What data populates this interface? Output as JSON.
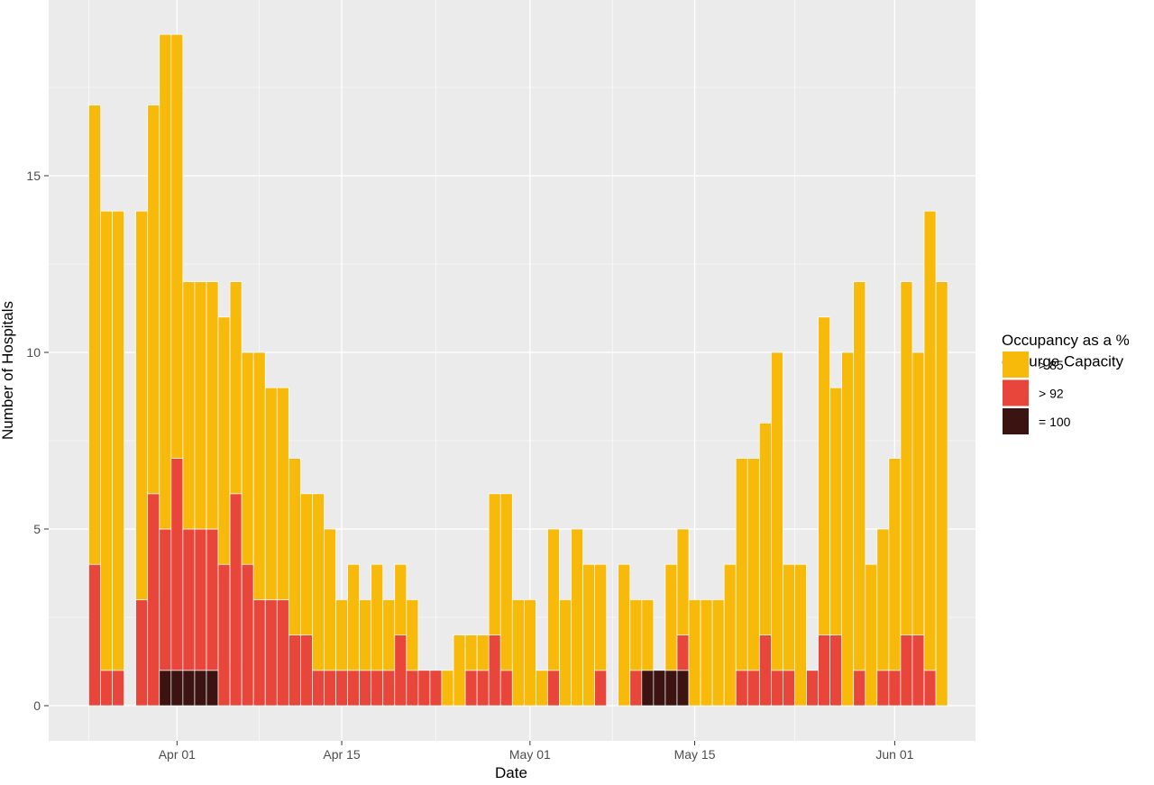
{
  "chart_data": {
    "type": "bar",
    "stacked": true,
    "xlabel": "Date",
    "ylabel": "Number of Hospitals",
    "ylim": [
      0,
      19
    ],
    "yticks": [
      0,
      5,
      10,
      15
    ],
    "xticks": [
      "Apr 01",
      "Apr 15",
      "May 01",
      "May 15",
      "Jun 01"
    ],
    "xtick_dates": [
      "2020-04-01",
      "2020-04-15",
      "2020-05-01",
      "2020-05-15",
      "2020-06-01"
    ],
    "x": [
      "2020-03-25",
      "2020-03-26",
      "2020-03-27",
      "2020-03-28",
      "2020-03-29",
      "2020-03-30",
      "2020-03-31",
      "2020-04-01",
      "2020-04-02",
      "2020-04-03",
      "2020-04-04",
      "2020-04-05",
      "2020-04-06",
      "2020-04-07",
      "2020-04-08",
      "2020-04-09",
      "2020-04-10",
      "2020-04-11",
      "2020-04-12",
      "2020-04-13",
      "2020-04-14",
      "2020-04-15",
      "2020-04-16",
      "2020-04-17",
      "2020-04-18",
      "2020-04-19",
      "2020-04-20",
      "2020-04-21",
      "2020-04-22",
      "2020-04-23",
      "2020-04-24",
      "2020-04-25",
      "2020-04-26",
      "2020-04-27",
      "2020-04-28",
      "2020-04-29",
      "2020-04-30",
      "2020-05-01",
      "2020-05-02",
      "2020-05-03",
      "2020-05-04",
      "2020-05-05",
      "2020-05-06",
      "2020-05-07",
      "2020-05-08",
      "2020-05-09",
      "2020-05-10",
      "2020-05-11",
      "2020-05-12",
      "2020-05-13",
      "2020-05-14",
      "2020-05-15",
      "2020-05-16",
      "2020-05-17",
      "2020-05-18",
      "2020-05-19",
      "2020-05-20",
      "2020-05-21",
      "2020-05-22",
      "2020-05-23",
      "2020-05-24",
      "2020-05-25",
      "2020-05-26",
      "2020-05-27",
      "2020-05-28",
      "2020-05-29",
      "2020-05-30",
      "2020-05-31",
      "2020-06-01",
      "2020-06-02",
      "2020-06-03",
      "2020-06-04",
      "2020-06-05"
    ],
    "series": [
      {
        "name": "> 85",
        "color": "#F8BA0A",
        "values": [
          13,
          13,
          13,
          0,
          11,
          11,
          14,
          12,
          7,
          7,
          7,
          7,
          6,
          6,
          7,
          6,
          6,
          5,
          4,
          5,
          4,
          2,
          3,
          2,
          3,
          2,
          2,
          2,
          0,
          0,
          1,
          2,
          1,
          1,
          4,
          5,
          3,
          3,
          1,
          4,
          3,
          5,
          4,
          3,
          0,
          4,
          2,
          2,
          0,
          3,
          3,
          3,
          3,
          3,
          4,
          6,
          6,
          6,
          9,
          3,
          4,
          0,
          9,
          7,
          10,
          11,
          4,
          4,
          6,
          10,
          8,
          13,
          12
        ]
      },
      {
        "name": "> 92",
        "color": "#E8463A",
        "values": [
          4,
          1,
          1,
          0,
          3,
          6,
          4,
          6,
          4,
          4,
          4,
          4,
          6,
          4,
          3,
          3,
          3,
          2,
          2,
          1,
          1,
          1,
          1,
          1,
          1,
          1,
          2,
          1,
          1,
          1,
          0,
          0,
          1,
          1,
          2,
          1,
          0,
          0,
          0,
          1,
          0,
          0,
          0,
          1,
          0,
          0,
          1,
          0,
          0,
          0,
          1,
          0,
          0,
          0,
          0,
          1,
          1,
          2,
          1,
          1,
          0,
          1,
          2,
          2,
          0,
          1,
          0,
          1,
          1,
          2,
          2,
          1,
          0
        ]
      },
      {
        "name": "= 100",
        "color": "#3B1412",
        "values": [
          0,
          0,
          0,
          0,
          0,
          0,
          1,
          1,
          1,
          1,
          1,
          0,
          0,
          0,
          0,
          0,
          0,
          0,
          0,
          0,
          0,
          0,
          0,
          0,
          0,
          0,
          0,
          0,
          0,
          0,
          0,
          0,
          0,
          0,
          0,
          0,
          0,
          0,
          0,
          0,
          0,
          0,
          0,
          0,
          0,
          0,
          0,
          1,
          1,
          1,
          1,
          0,
          0,
          0,
          0,
          0,
          0,
          0,
          0,
          0,
          0,
          0,
          0,
          0,
          0,
          0,
          0,
          0,
          0,
          0,
          0,
          0,
          0
        ]
      }
    ],
    "legend": {
      "title_lines": [
        "Occupancy as a %",
        "of Surge Capacity"
      ],
      "position": "right"
    },
    "background": "#EBEBEB",
    "grid": true
  }
}
